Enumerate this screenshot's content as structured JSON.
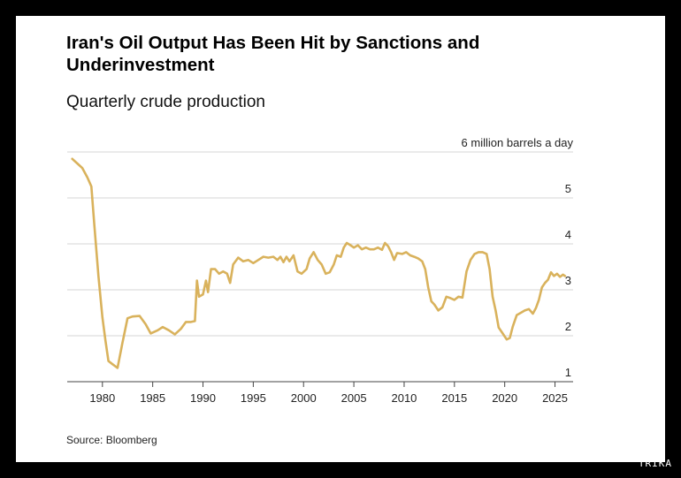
{
  "title": "Iran's Oil Output Has Been Hit by Sanctions and Underinvestment",
  "subtitle": "Quarterly crude production",
  "source": "Source: Bloomberg",
  "watermark": "TRIKA",
  "chart_data": {
    "type": "line",
    "title": "Iran's Oil Output Has Been Hit by Sanctions and Underinvestment",
    "subtitle": "Quarterly crude production",
    "unit_label": "6 million barrels a day",
    "xlabel": "",
    "ylabel": "",
    "ylim": [
      1,
      6
    ],
    "xlim": [
      1976.5,
      2026.8
    ],
    "yticks": [
      1,
      2,
      3,
      4,
      5,
      6
    ],
    "ytick_labels": [
      "1",
      "2",
      "3",
      "4",
      "5",
      "6 million barrels a day"
    ],
    "xticks": [
      1980,
      1985,
      1990,
      1995,
      2000,
      2005,
      2010,
      2015,
      2020,
      2025
    ],
    "line_color": "#d9b25c",
    "grid": true,
    "series": [
      {
        "name": "",
        "points": [
          [
            1977.0,
            5.85
          ],
          [
            1977.5,
            5.75
          ],
          [
            1978.0,
            5.65
          ],
          [
            1978.5,
            5.45
          ],
          [
            1978.9,
            5.25
          ],
          [
            1979.2,
            4.4
          ],
          [
            1979.6,
            3.3
          ],
          [
            1980.0,
            2.4
          ],
          [
            1980.3,
            1.9
          ],
          [
            1980.6,
            1.45
          ],
          [
            1981.0,
            1.38
          ],
          [
            1981.5,
            1.3
          ],
          [
            1982.0,
            1.85
          ],
          [
            1982.5,
            2.38
          ],
          [
            1983.0,
            2.42
          ],
          [
            1983.7,
            2.43
          ],
          [
            1984.3,
            2.25
          ],
          [
            1984.8,
            2.05
          ],
          [
            1985.5,
            2.12
          ],
          [
            1986.0,
            2.19
          ],
          [
            1986.6,
            2.12
          ],
          [
            1987.2,
            2.03
          ],
          [
            1987.8,
            2.15
          ],
          [
            1988.3,
            2.3
          ],
          [
            1988.8,
            2.3
          ],
          [
            1989.2,
            2.32
          ],
          [
            1989.4,
            3.2
          ],
          [
            1989.6,
            2.85
          ],
          [
            1990.0,
            2.9
          ],
          [
            1990.3,
            3.2
          ],
          [
            1990.5,
            2.95
          ],
          [
            1990.8,
            3.45
          ],
          [
            1991.2,
            3.45
          ],
          [
            1991.6,
            3.35
          ],
          [
            1992.0,
            3.4
          ],
          [
            1992.4,
            3.35
          ],
          [
            1992.7,
            3.15
          ],
          [
            1993.0,
            3.55
          ],
          [
            1993.5,
            3.7
          ],
          [
            1994.0,
            3.62
          ],
          [
            1994.5,
            3.65
          ],
          [
            1995.0,
            3.58
          ],
          [
            1995.5,
            3.65
          ],
          [
            1996.0,
            3.72
          ],
          [
            1996.5,
            3.7
          ],
          [
            1997.0,
            3.72
          ],
          [
            1997.4,
            3.65
          ],
          [
            1997.7,
            3.72
          ],
          [
            1998.0,
            3.6
          ],
          [
            1998.3,
            3.72
          ],
          [
            1998.6,
            3.62
          ],
          [
            1999.0,
            3.75
          ],
          [
            1999.4,
            3.4
          ],
          [
            1999.8,
            3.35
          ],
          [
            2000.3,
            3.45
          ],
          [
            2000.6,
            3.68
          ],
          [
            2001.0,
            3.82
          ],
          [
            2001.4,
            3.65
          ],
          [
            2001.8,
            3.55
          ],
          [
            2002.2,
            3.35
          ],
          [
            2002.6,
            3.38
          ],
          [
            2003.0,
            3.55
          ],
          [
            2003.3,
            3.75
          ],
          [
            2003.7,
            3.72
          ],
          [
            2004.0,
            3.92
          ],
          [
            2004.3,
            4.02
          ],
          [
            2004.6,
            3.98
          ],
          [
            2005.0,
            3.92
          ],
          [
            2005.4,
            3.97
          ],
          [
            2005.8,
            3.88
          ],
          [
            2006.2,
            3.92
          ],
          [
            2006.6,
            3.88
          ],
          [
            2007.0,
            3.88
          ],
          [
            2007.4,
            3.92
          ],
          [
            2007.8,
            3.87
          ],
          [
            2008.1,
            4.02
          ],
          [
            2008.4,
            3.95
          ],
          [
            2008.7,
            3.82
          ],
          [
            2009.0,
            3.65
          ],
          [
            2009.3,
            3.8
          ],
          [
            2009.8,
            3.78
          ],
          [
            2010.2,
            3.82
          ],
          [
            2010.6,
            3.75
          ],
          [
            2011.0,
            3.72
          ],
          [
            2011.4,
            3.68
          ],
          [
            2011.8,
            3.62
          ],
          [
            2012.1,
            3.45
          ],
          [
            2012.4,
            3.05
          ],
          [
            2012.7,
            2.75
          ],
          [
            2013.0,
            2.68
          ],
          [
            2013.4,
            2.55
          ],
          [
            2013.8,
            2.62
          ],
          [
            2014.2,
            2.85
          ],
          [
            2014.6,
            2.82
          ],
          [
            2015.0,
            2.78
          ],
          [
            2015.4,
            2.85
          ],
          [
            2015.8,
            2.83
          ],
          [
            2016.2,
            3.4
          ],
          [
            2016.6,
            3.65
          ],
          [
            2017.0,
            3.78
          ],
          [
            2017.4,
            3.82
          ],
          [
            2017.8,
            3.82
          ],
          [
            2018.2,
            3.78
          ],
          [
            2018.5,
            3.45
          ],
          [
            2018.8,
            2.85
          ],
          [
            2019.1,
            2.55
          ],
          [
            2019.4,
            2.18
          ],
          [
            2019.8,
            2.05
          ],
          [
            2020.2,
            1.92
          ],
          [
            2020.5,
            1.95
          ],
          [
            2020.8,
            2.2
          ],
          [
            2021.2,
            2.45
          ],
          [
            2021.6,
            2.5
          ],
          [
            2022.0,
            2.55
          ],
          [
            2022.4,
            2.58
          ],
          [
            2022.8,
            2.48
          ],
          [
            2023.1,
            2.6
          ],
          [
            2023.4,
            2.78
          ],
          [
            2023.7,
            3.05
          ],
          [
            2024.0,
            3.15
          ],
          [
            2024.3,
            3.22
          ],
          [
            2024.6,
            3.38
          ],
          [
            2024.9,
            3.3
          ],
          [
            2025.2,
            3.35
          ],
          [
            2025.5,
            3.28
          ],
          [
            2025.8,
            3.33
          ],
          [
            2026.0,
            3.3
          ]
        ]
      }
    ]
  }
}
